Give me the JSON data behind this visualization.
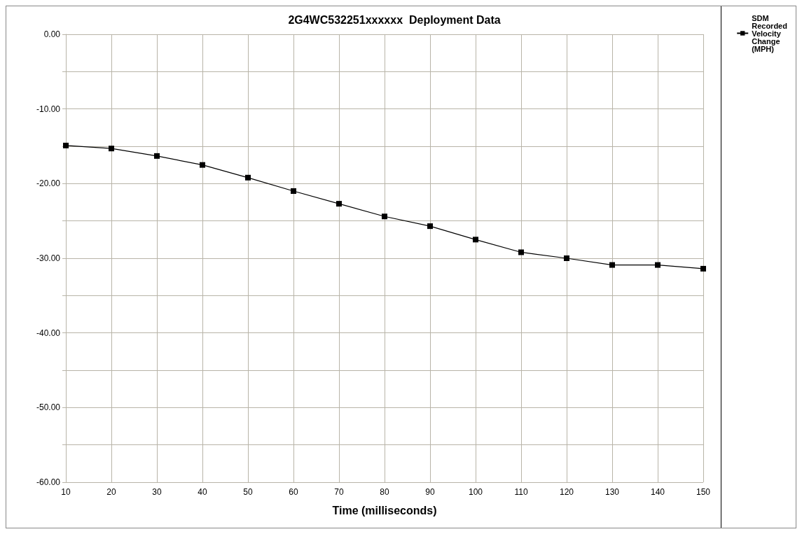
{
  "chart_data": {
    "type": "line",
    "title": "2G4WC532251xxxxxx  Deployment Data",
    "xlabel": "Time (milliseconds)",
    "x": [
      10,
      20,
      30,
      40,
      50,
      60,
      70,
      80,
      90,
      100,
      110,
      120,
      130,
      140,
      150
    ],
    "series": [
      {
        "name": "SDM Recorded Velocity Change (MPH)",
        "color": "#000000",
        "values": [
          -14.9,
          -15.3,
          -16.3,
          -17.5,
          -19.2,
          -21.0,
          -22.7,
          -24.4,
          -25.7,
          -27.5,
          -29.2,
          -30.0,
          -30.9,
          -30.9,
          -31.4
        ]
      }
    ],
    "xlim": [
      10,
      150
    ],
    "xticks": [
      10,
      20,
      30,
      40,
      50,
      60,
      70,
      80,
      90,
      100,
      110,
      120,
      130,
      140,
      150
    ],
    "ylim": [
      -60,
      0
    ],
    "yticks": [
      {
        "value": -60,
        "label": "-60.00"
      },
      {
        "value": -55,
        "label": null
      },
      {
        "value": -50,
        "label": "-50.00"
      },
      {
        "value": -45,
        "label": null
      },
      {
        "value": -40,
        "label": "-40.00"
      },
      {
        "value": -35,
        "label": null
      },
      {
        "value": -30,
        "label": "-30.00"
      },
      {
        "value": -25,
        "label": null
      },
      {
        "value": -20,
        "label": "-20.00"
      },
      {
        "value": -15,
        "label": null
      },
      {
        "value": -10,
        "label": "-10.00"
      },
      {
        "value": -5,
        "label": null
      },
      {
        "value": 0,
        "label": "0.00"
      }
    ],
    "grid": true,
    "legend": "right",
    "marker": "square",
    "line_style": "solid"
  }
}
